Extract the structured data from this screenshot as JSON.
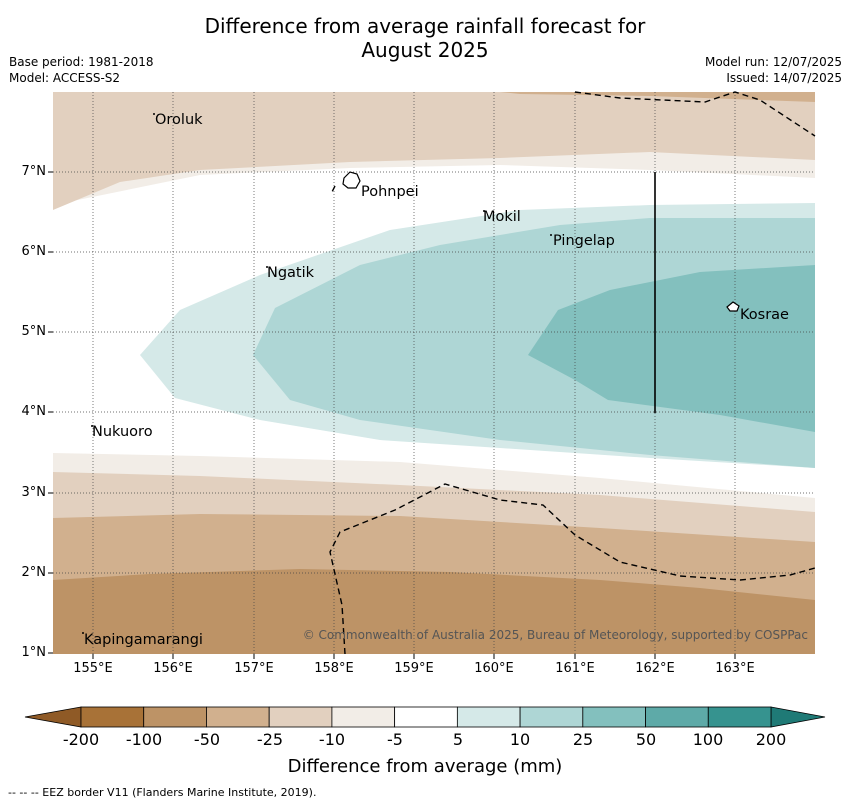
{
  "title": "Difference from average rainfall forecast for August 2025",
  "meta": {
    "base_period": "Base period: 1981-2018",
    "model": "Model: ACCESS-S2",
    "model_run": "Model run: 12/07/2025",
    "issued": "Issued: 14/07/2025"
  },
  "map": {
    "lon_range": [
      154.5,
      164.0
    ],
    "lat_range": [
      1.0,
      8.0
    ],
    "y_ticks": [
      "7°N",
      "6°N",
      "5°N",
      "4°N",
      "3°N",
      "2°N",
      "1°N"
    ],
    "x_ticks": [
      "155°E",
      "156°E",
      "157°E",
      "158°E",
      "159°E",
      "160°E",
      "161°E",
      "162°E",
      "163°E"
    ],
    "places": [
      {
        "name": "Oroluk"
      },
      {
        "name": "Pohnpei"
      },
      {
        "name": "Mokil"
      },
      {
        "name": "Pingelap"
      },
      {
        "name": "Ngatik"
      },
      {
        "name": "Kosrae"
      },
      {
        "name": "Nukuoro"
      },
      {
        "name": "Kapingamarangi"
      }
    ],
    "credit": "© Commonwealth of Australia 2025, Bureau of Meteorology, supported by COSPPac"
  },
  "colorbar": {
    "ticks": [
      "-200",
      "-100",
      "-50",
      "-25",
      "-10",
      "-5",
      "5",
      "10",
      "25",
      "50",
      "100",
      "200"
    ],
    "colors": [
      "#a87237",
      "#bd9366",
      "#d1b08e",
      "#e2d0bf",
      "#f2ede7",
      "#ffffff",
      "#d5e9e8",
      "#aed6d5",
      "#83c0be",
      "#5eaaa8",
      "#36938f"
    ],
    "title": "Difference from average (mm)"
  },
  "footer": "-- -- -- EEZ border V11 (Flanders Marine Institute, 2019)."
}
